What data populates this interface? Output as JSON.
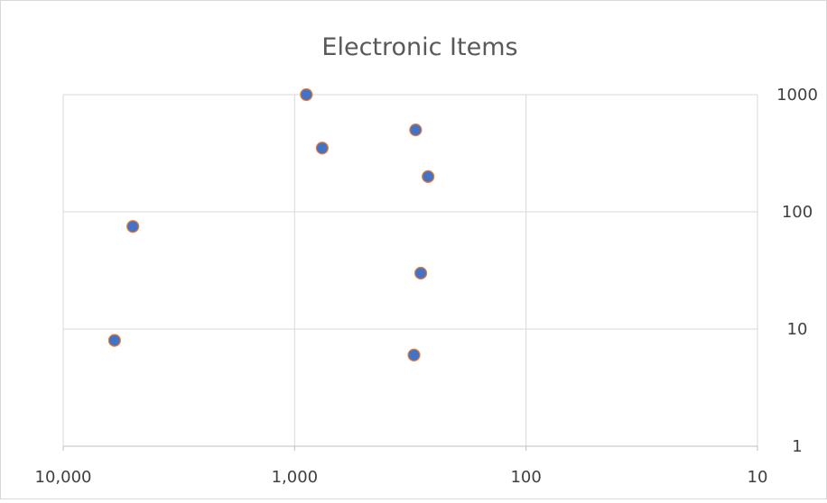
{
  "chart_data": {
    "type": "scatter",
    "title": "Electronic Items",
    "xlabel": "",
    "ylabel": "",
    "x_scale": "log",
    "x_reversed": true,
    "y_scale": "log",
    "xlim": [
      10,
      10000
    ],
    "ylim": [
      1,
      1000
    ],
    "x_ticks": [
      10000,
      1000,
      100,
      10
    ],
    "x_tick_labels": [
      "10,000",
      "1,000",
      "100",
      "10"
    ],
    "y_ticks": [
      1,
      10,
      100,
      1000
    ],
    "y_tick_labels": [
      "1",
      "10",
      "100",
      "1000"
    ],
    "y_axis_position": "right",
    "grid": true,
    "legend": "none",
    "series": [
      {
        "points": [
          {
            "x": 890,
            "y": 1000
          },
          {
            "x": 300,
            "y": 500
          },
          {
            "x": 760,
            "y": 350
          },
          {
            "x": 265,
            "y": 200
          },
          {
            "x": 5000,
            "y": 75
          },
          {
            "x": 285,
            "y": 30
          },
          {
            "x": 6000,
            "y": 8
          },
          {
            "x": 305,
            "y": 6
          }
        ]
      }
    ],
    "colors": {
      "marker_fill": "#4472c4",
      "marker_edge": "#ed7d31",
      "grid": "#d9d9d9",
      "axis": "#bfbfbf",
      "title_text": "#595959",
      "tick_text": "#404040"
    }
  }
}
